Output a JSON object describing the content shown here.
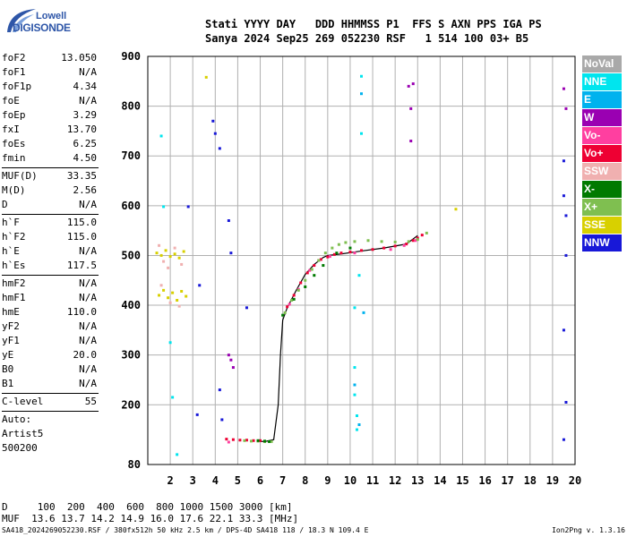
{
  "logo": {
    "top": "Lowell",
    "bottom": "DIGISONDE"
  },
  "header": {
    "line1": "Stati YYYY DAY   DDD HHMMSS P1  FFS S AXN PPS IGA PS",
    "line2": "Sanya 2024 Sep25 269 052230 RSF   1 514 100 03+ B5"
  },
  "params": [
    {
      "k": "foF2",
      "v": "13.050"
    },
    {
      "k": "foF1",
      "v": "N/A"
    },
    {
      "k": "foF1p",
      "v": "4.34"
    },
    {
      "k": "foE",
      "v": "N/A"
    },
    {
      "k": "foEp",
      "v": "3.29"
    },
    {
      "k": "fxI",
      "v": "13.70"
    },
    {
      "k": "foEs",
      "v": "6.25"
    },
    {
      "k": "fmin",
      "v": "4.50"
    },
    {
      "sep": true
    },
    {
      "k": "MUF(D)",
      "v": "33.35"
    },
    {
      "k": "M(D)",
      "v": "2.56"
    },
    {
      "k": "D",
      "v": "N/A"
    },
    {
      "sep": true
    },
    {
      "k": "h`F",
      "v": "115.0"
    },
    {
      "k": "h`F2",
      "v": "115.0"
    },
    {
      "k": "h`E",
      "v": "N/A"
    },
    {
      "k": "h`Es",
      "v": "117.5"
    },
    {
      "sep": true
    },
    {
      "k": "hmF2",
      "v": "N/A"
    },
    {
      "k": "hmF1",
      "v": "N/A"
    },
    {
      "k": "hmE",
      "v": "110.0"
    },
    {
      "k": "yF2",
      "v": "N/A"
    },
    {
      "k": "yF1",
      "v": "N/A"
    },
    {
      "k": "yE",
      "v": "20.0"
    },
    {
      "k": "B0",
      "v": "N/A"
    },
    {
      "k": "B1",
      "v": "N/A"
    },
    {
      "sep": true
    },
    {
      "k": "C-level",
      "v": "55"
    },
    {
      "sep": true
    },
    {
      "k": "Auto:",
      "v": ""
    },
    {
      "k": "Artist5",
      "v": ""
    },
    {
      "k": "500200",
      "v": ""
    }
  ],
  "legend": [
    {
      "label": "NoVal",
      "color": "#a9a9a9"
    },
    {
      "label": "NNE",
      "color": "#00e5ee"
    },
    {
      "label": "E",
      "color": "#00b2ee"
    },
    {
      "label": "W",
      "color": "#9a00b2"
    },
    {
      "label": "Vo-",
      "color": "#ff3fa0"
    },
    {
      "label": "Vo+",
      "color": "#ee0033"
    },
    {
      "label": "SSW",
      "color": "#f0b0b0"
    },
    {
      "label": "X-",
      "color": "#007a00"
    },
    {
      "label": "X+",
      "color": "#7fbf50"
    },
    {
      "label": "SSE",
      "color": "#d8d000"
    },
    {
      "label": "NNW",
      "color": "#1818d8"
    }
  ],
  "footer": {
    "d_line": "D     100  200  400  600  800 1000 1500 3000 [km]",
    "muf_line": "MUF  13.6 13.7 14.2 14.9 16.0 17.6 22.1 33.3 [MHz]",
    "source": "SA418_2024269052230.RSF / 380fx512h 50 kHz 2.5 km / DPS-4D SA418 118 / 18.3 N 109.4 E",
    "version": "Ion2Png v. 1.3.16"
  },
  "chart_data": {
    "type": "scatter",
    "xlim": [
      1,
      20
    ],
    "ylim": [
      80,
      900
    ],
    "x_ticks": [
      2,
      3,
      4,
      5,
      6,
      7,
      8,
      9,
      10,
      11,
      12,
      13,
      14,
      15,
      16,
      17,
      18,
      19,
      20
    ],
    "y_ticks": [
      80,
      200,
      300,
      400,
      500,
      600,
      700,
      800,
      900
    ],
    "grid": true,
    "series": [
      {
        "color": "#000000",
        "kind": "line",
        "x": [
          6.0,
          6.3,
          6.6,
          6.8,
          6.9,
          7.0,
          7.2,
          7.6,
          8.0,
          8.4,
          8.8,
          9.0,
          9.6,
          10.5,
          11.5,
          12.5,
          13.0
        ],
        "y": [
          126,
          127,
          130,
          200,
          300,
          370,
          395,
          430,
          462,
          482,
          496,
          500,
          503,
          509,
          515,
          523,
          540
        ]
      },
      {
        "color": "#ee0033",
        "x": [
          4.5,
          4.8,
          5.1,
          5.4,
          5.7,
          6.0,
          7.2,
          7.5,
          7.8,
          8.1,
          8.4,
          8.7,
          9.0,
          9.3,
          9.6,
          10.0,
          10.5,
          11.0,
          11.5,
          12.0,
          12.5,
          12.8,
          13.0,
          13.2
        ],
        "y": [
          131,
          130,
          129,
          129,
          128,
          128,
          397,
          420,
          445,
          465,
          480,
          492,
          497,
          502,
          505,
          507,
          510,
          512,
          515,
          519,
          523,
          530,
          535,
          541
        ]
      },
      {
        "color": "#ff3fa0",
        "x": [
          4.6,
          7.3,
          7.7,
          8.2,
          8.6,
          9.1,
          10.2,
          11.8,
          12.4,
          12.9
        ],
        "y": [
          125,
          402,
          432,
          470,
          490,
          498,
          505,
          512,
          520,
          530
        ]
      },
      {
        "color": "#7fbf50",
        "x": [
          5.3,
          5.6,
          5.9,
          6.2,
          6.5,
          7.1,
          7.4,
          7.7,
          8.0,
          8.3,
          8.6,
          8.9,
          9.2,
          9.5,
          9.8,
          10.2,
          10.8,
          11.4,
          12.0,
          12.6,
          13.0,
          13.4
        ],
        "y": [
          128,
          127,
          127,
          126,
          126,
          385,
          410,
          430,
          450,
          472,
          490,
          505,
          515,
          522,
          526,
          528,
          530,
          528,
          527,
          528,
          532,
          545
        ]
      },
      {
        "color": "#007a00",
        "x": [
          5.9,
          6.2,
          6.4,
          7.0,
          7.5,
          8.0,
          8.4,
          8.8,
          9.4,
          10.0
        ],
        "y": [
          128,
          127,
          126,
          380,
          412,
          437,
          460,
          480,
          505,
          515
        ]
      },
      {
        "color": "#d8d000",
        "x": [
          1.4,
          1.6,
          1.8,
          2.0,
          2.2,
          2.4,
          2.6,
          1.5,
          1.7,
          1.9,
          2.1,
          2.3,
          2.5,
          2.7,
          3.6,
          14.7
        ],
        "y": [
          505,
          500,
          510,
          498,
          503,
          495,
          508,
          420,
          430,
          415,
          425,
          410,
          428,
          418,
          858,
          593
        ]
      },
      {
        "color": "#f0b0b0",
        "x": [
          1.5,
          1.7,
          1.9,
          2.2,
          2.5,
          1.6,
          2.0,
          2.4
        ],
        "y": [
          520,
          488,
          475,
          515,
          482,
          440,
          405,
          398
        ]
      },
      {
        "color": "#00e5ee",
        "x": [
          1.6,
          1.7,
          2.0,
          2.1,
          2.3,
          10.2,
          10.2,
          10.3,
          10.3,
          10.5,
          10.5,
          10.2,
          10.4
        ],
        "y": [
          740,
          598,
          325,
          215,
          100,
          275,
          220,
          178,
          150,
          860,
          745,
          395,
          460
        ]
      },
      {
        "color": "#00b2ee",
        "x": [
          10.5,
          10.6,
          10.2,
          10.4
        ],
        "y": [
          825,
          385,
          240,
          160
        ]
      },
      {
        "color": "#9a00b2",
        "x": [
          4.6,
          4.7,
          4.8,
          12.6,
          12.8,
          12.7,
          12.7,
          19.5,
          19.6
        ],
        "y": [
          300,
          290,
          275,
          840,
          845,
          795,
          730,
          835,
          795
        ]
      },
      {
        "color": "#1818d8",
        "x": [
          2.8,
          3.2,
          3.3,
          3.9,
          4.0,
          4.2,
          4.6,
          4.7,
          4.2,
          4.3,
          5.4,
          19.5,
          19.5,
          19.6,
          19.6,
          19.5,
          19.6,
          19.5
        ],
        "y": [
          598,
          180,
          440,
          770,
          745,
          715,
          570,
          505,
          230,
          170,
          395,
          690,
          620,
          580,
          500,
          350,
          205,
          130
        ]
      }
    ]
  }
}
